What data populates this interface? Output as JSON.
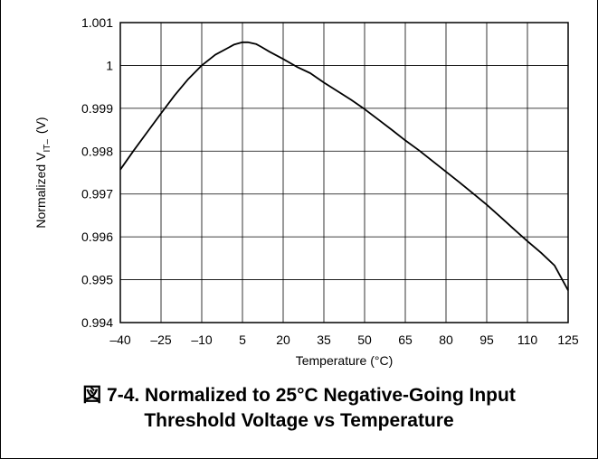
{
  "caption": {
    "line1": "図 7-4. Normalized to 25°C Negative-Going Input",
    "line2": "Threshold Voltage vs Temperature"
  },
  "chart_data": {
    "type": "line",
    "title": "",
    "xlabel": "Temperature (°C)",
    "ylabel": {
      "main": "Normalized V",
      "subscript": "IT–",
      "unit": "(V)"
    },
    "xlim": [
      -40,
      125
    ],
    "ylim": [
      0.994,
      1.001
    ],
    "x_ticks": [
      -40,
      -25,
      -10,
      5,
      20,
      35,
      50,
      65,
      80,
      95,
      110,
      125
    ],
    "x_tick_labels": [
      "–40",
      "–25",
      "–10",
      "5",
      "20",
      "35",
      "50",
      "65",
      "80",
      "95",
      "110",
      "125"
    ],
    "y_ticks": [
      0.994,
      0.995,
      0.996,
      0.997,
      0.998,
      0.999,
      1,
      1.001
    ],
    "y_tick_labels": [
      "0.994",
      "0.995",
      "0.996",
      "0.997",
      "0.998",
      "0.999",
      "1",
      "1.001"
    ],
    "grid": true,
    "series": [
      {
        "x": [
          -40,
          -35,
          -30,
          -25,
          -20,
          -15,
          -10,
          -5,
          0,
          2,
          5,
          7,
          10,
          12,
          15,
          20,
          25,
          30,
          35,
          40,
          45,
          50,
          55,
          60,
          65,
          70,
          75,
          80,
          85,
          90,
          95,
          100,
          105,
          110,
          115,
          120,
          125
        ],
        "y": [
          0.99757,
          0.99802,
          0.99845,
          0.99888,
          0.9993,
          0.99968,
          1.0,
          1.00025,
          1.00042,
          1.00049,
          1.00054,
          1.00054,
          1.0005,
          1.00043,
          1.00032,
          1.00015,
          0.99997,
          0.99982,
          0.9996,
          0.9994,
          0.9992,
          0.99898,
          0.99874,
          0.9985,
          0.99825,
          0.99802,
          0.99777,
          0.99752,
          0.99727,
          0.99701,
          0.99675,
          0.99647,
          0.99618,
          0.9959,
          0.99563,
          0.99533,
          0.99475
        ]
      }
    ]
  }
}
